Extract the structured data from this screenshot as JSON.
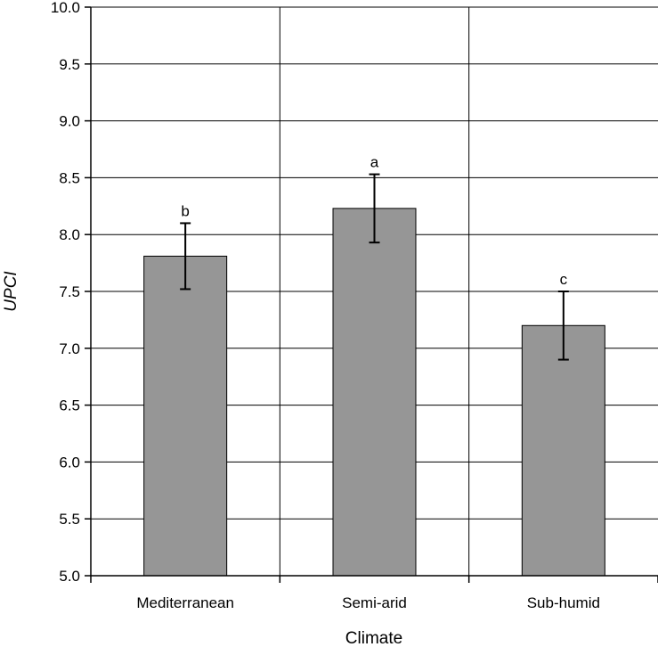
{
  "chart_data": {
    "type": "bar",
    "categories": [
      "Mediterranean",
      "Semi-arid",
      "Sub-humid"
    ],
    "values": [
      7.81,
      8.23,
      7.2
    ],
    "error": [
      0.29,
      0.3,
      0.3
    ],
    "significance_letters": [
      "b",
      "a",
      "c"
    ],
    "title": "",
    "xlabel": "Climate",
    "ylabel": "UPCI",
    "ylim": [
      5.0,
      10.0
    ],
    "yticks": [
      "5.0",
      "5.5",
      "6.0",
      "6.5",
      "7.0",
      "7.5",
      "8.0",
      "8.5",
      "9.0",
      "9.5",
      "10.0"
    ],
    "grid": true,
    "bar_color": "#969696"
  }
}
